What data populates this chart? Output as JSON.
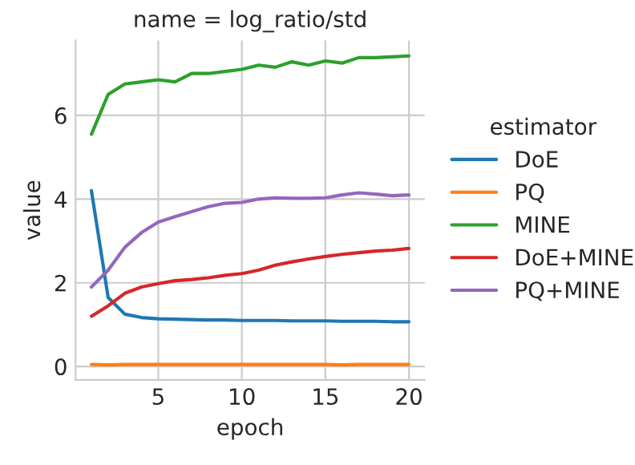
{
  "chart_data": {
    "type": "line",
    "title": "name = log_ratio/std",
    "xlabel": "epoch",
    "ylabel": "value",
    "legend_title": "estimator",
    "legend": "right",
    "x": [
      1,
      2,
      3,
      4,
      5,
      6,
      7,
      8,
      9,
      10,
      11,
      12,
      13,
      14,
      15,
      16,
      17,
      18,
      19,
      20
    ],
    "series": [
      {
        "name": "DoE",
        "color": "#1f77b4",
        "values": [
          4.2,
          1.65,
          1.25,
          1.17,
          1.14,
          1.13,
          1.12,
          1.11,
          1.11,
          1.1,
          1.1,
          1.1,
          1.09,
          1.09,
          1.09,
          1.08,
          1.08,
          1.08,
          1.07,
          1.07
        ]
      },
      {
        "name": "PQ",
        "color": "#ff7f0e",
        "values": [
          0.05,
          0.04,
          0.05,
          0.05,
          0.05,
          0.05,
          0.05,
          0.05,
          0.05,
          0.05,
          0.05,
          0.05,
          0.05,
          0.05,
          0.05,
          0.04,
          0.05,
          0.05,
          0.05,
          0.05
        ]
      },
      {
        "name": "MINE",
        "color": "#2ca02c",
        "values": [
          5.55,
          6.5,
          6.75,
          6.8,
          6.85,
          6.8,
          7.0,
          7.0,
          7.05,
          7.1,
          7.2,
          7.15,
          7.28,
          7.2,
          7.3,
          7.25,
          7.38,
          7.38,
          7.4,
          7.42
        ]
      },
      {
        "name": "DoE+MINE",
        "color": "#d62728",
        "values": [
          1.2,
          1.45,
          1.75,
          1.9,
          1.98,
          2.05,
          2.08,
          2.12,
          2.18,
          2.22,
          2.3,
          2.42,
          2.5,
          2.57,
          2.63,
          2.68,
          2.72,
          2.76,
          2.78,
          2.82
        ]
      },
      {
        "name": "PQ+MINE",
        "color": "#9467bd",
        "values": [
          1.9,
          2.3,
          2.85,
          3.2,
          3.45,
          3.58,
          3.7,
          3.82,
          3.9,
          3.92,
          4.0,
          4.03,
          4.02,
          4.02,
          4.03,
          4.1,
          4.15,
          4.12,
          4.08,
          4.1
        ]
      }
    ],
    "xlim": [
      0.05,
      20.95
    ],
    "xticks": [
      5,
      10,
      15,
      20
    ],
    "ylim": [
      -0.32,
      7.79
    ],
    "yticks": [
      0,
      2,
      4,
      6
    ],
    "grid": true
  }
}
